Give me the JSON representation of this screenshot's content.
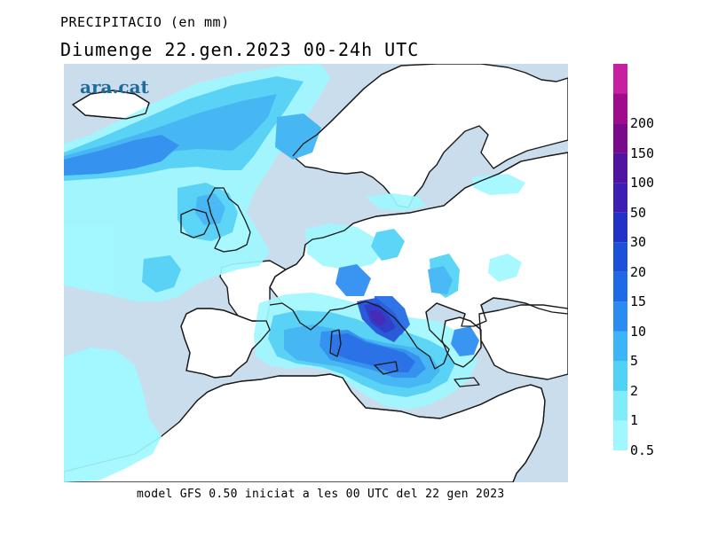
{
  "header": {
    "title": "PRECIPITACIO (en mm)",
    "subtitle": "Diumenge  22.gen.2023 00-24h UTC"
  },
  "logo": {
    "text": "ara.cat"
  },
  "footer": {
    "text": "model GFS 0.50 iniciat a les 00 UTC del 22 gen 2023"
  },
  "legend": {
    "levels": [
      {
        "label": "0.5",
        "color": "#a0f8ff"
      },
      {
        "label": "1",
        "color": "#80ecfa"
      },
      {
        "label": "2",
        "color": "#50d2f6"
      },
      {
        "label": "5",
        "color": "#3cb4f5"
      },
      {
        "label": "10",
        "color": "#2a8cf0"
      },
      {
        "label": "15",
        "color": "#1e6ae6"
      },
      {
        "label": "20",
        "color": "#1c50d8"
      },
      {
        "label": "30",
        "color": "#2232c8"
      },
      {
        "label": "50",
        "color": "#3c1eb4"
      },
      {
        "label": "100",
        "color": "#5014a0"
      },
      {
        "label": "150",
        "color": "#7a0a8c"
      },
      {
        "label": "200",
        "color": "#a00a8c"
      }
    ],
    "top_color": "#c81ea0"
  },
  "map_colors": {
    "sea": "#c9dded",
    "land": "#ffffff",
    "coast": "#1a1a1a"
  }
}
